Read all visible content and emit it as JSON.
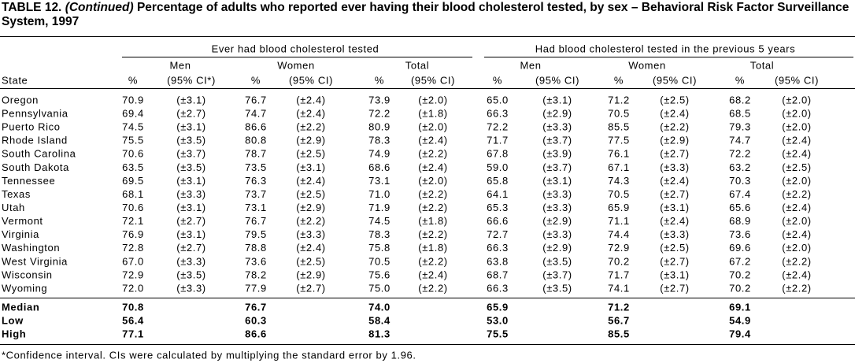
{
  "title": {
    "label": "TABLE 12.",
    "continued": "(Continued)",
    "text": "Percentage of adults who reported ever having their blood cholesterol tested, by sex – Behavioral Risk Factor Surveillance System, 1997"
  },
  "table": {
    "groups": [
      "Ever had blood cholesterol tested",
      "Had blood cholesterol tested in the previous 5 years"
    ],
    "subgroups": [
      "Men",
      "Women",
      "Total",
      "Men",
      "Women",
      "Total"
    ],
    "columns": [
      "State",
      "%",
      "(95% CI*)",
      "%",
      "(95% CI)",
      "%",
      "(95% CI)",
      "%",
      "(95% CI)",
      "%",
      "(95% CI)",
      "%",
      "(95% CI)"
    ],
    "rows": [
      [
        "Oregon",
        "70.9",
        "(±3.1)",
        "76.7",
        "(±2.4)",
        "73.9",
        "(±2.0)",
        "65.0",
        "(±3.1)",
        "71.2",
        "(±2.5)",
        "68.2",
        "(±2.0)"
      ],
      [
        "Pennsylvania",
        "69.4",
        "(±2.7)",
        "74.7",
        "(±2.4)",
        "72.2",
        "(±1.8)",
        "66.3",
        "(±2.9)",
        "70.5",
        "(±2.4)",
        "68.5",
        "(±2.0)"
      ],
      [
        "Puerto Rico",
        "74.5",
        "(±3.1)",
        "86.6",
        "(±2.2)",
        "80.9",
        "(±2.0)",
        "72.2",
        "(±3.3)",
        "85.5",
        "(±2.2)",
        "79.3",
        "(±2.0)"
      ],
      [
        "Rhode Island",
        "75.5",
        "(±3.5)",
        "80.8",
        "(±2.9)",
        "78.3",
        "(±2.4)",
        "71.7",
        "(±3.7)",
        "77.5",
        "(±2.9)",
        "74.7",
        "(±2.4)"
      ],
      [
        "South Carolina",
        "70.6",
        "(±3.7)",
        "78.7",
        "(±2.5)",
        "74.9",
        "(±2.2)",
        "67.8",
        "(±3.9)",
        "76.1",
        "(±2.7)",
        "72.2",
        "(±2.4)"
      ],
      [
        "South Dakota",
        "63.5",
        "(±3.5)",
        "73.5",
        "(±3.1)",
        "68.6",
        "(±2.4)",
        "59.0",
        "(±3.7)",
        "67.1",
        "(±3.3)",
        "63.2",
        "(±2.5)"
      ],
      [
        "Tennessee",
        "69.5",
        "(±3.1)",
        "76.3",
        "(±2.4)",
        "73.1",
        "(±2.0)",
        "65.8",
        "(±3.1)",
        "74.3",
        "(±2.4)",
        "70.3",
        "(±2.0)"
      ],
      [
        "Texas",
        "68.1",
        "(±3.3)",
        "73.7",
        "(±2.5)",
        "71.0",
        "(±2.2)",
        "64.1",
        "(±3.3)",
        "70.5",
        "(±2.7)",
        "67.4",
        "(±2.2)"
      ],
      [
        "Utah",
        "70.6",
        "(±3.1)",
        "73.1",
        "(±2.9)",
        "71.9",
        "(±2.2)",
        "65.3",
        "(±3.3)",
        "65.9",
        "(±3.1)",
        "65.6",
        "(±2.4)"
      ],
      [
        "Vermont",
        "72.1",
        "(±2.7)",
        "76.7",
        "(±2.2)",
        "74.5",
        "(±1.8)",
        "66.6",
        "(±2.9)",
        "71.1",
        "(±2.4)",
        "68.9",
        "(±2.0)"
      ],
      [
        "Virginia",
        "76.9",
        "(±3.1)",
        "79.5",
        "(±3.3)",
        "78.3",
        "(±2.2)",
        "72.7",
        "(±3.3)",
        "74.4",
        "(±3.3)",
        "73.6",
        "(±2.4)"
      ],
      [
        "Washington",
        "72.8",
        "(±2.7)",
        "78.8",
        "(±2.4)",
        "75.8",
        "(±1.8)",
        "66.3",
        "(±2.9)",
        "72.9",
        "(±2.5)",
        "69.6",
        "(±2.0)"
      ],
      [
        "West Virginia",
        "67.0",
        "(±3.3)",
        "73.6",
        "(±2.5)",
        "70.5",
        "(±2.2)",
        "63.8",
        "(±3.5)",
        "70.2",
        "(±2.7)",
        "67.2",
        "(±2.2)"
      ],
      [
        "Wisconsin",
        "72.9",
        "(±3.5)",
        "78.2",
        "(±2.9)",
        "75.6",
        "(±2.4)",
        "68.7",
        "(±3.7)",
        "71.7",
        "(±3.1)",
        "70.2",
        "(±2.4)"
      ],
      [
        "Wyoming",
        "72.0",
        "(±3.3)",
        "77.9",
        "(±2.7)",
        "75.0",
        "(±2.2)",
        "66.3",
        "(±3.5)",
        "74.1",
        "(±2.7)",
        "70.2",
        "(±2.2)"
      ]
    ],
    "summary": [
      [
        "Median",
        "70.8",
        "76.7",
        "74.0",
        "65.9",
        "71.2",
        "69.1"
      ],
      [
        "Low",
        "56.4",
        "60.3",
        "58.4",
        "53.0",
        "56.7",
        "54.9"
      ],
      [
        "High",
        "77.1",
        "86.6",
        "81.3",
        "75.5",
        "85.5",
        "79.4"
      ]
    ]
  },
  "footnote": "*Confidence interval. CIs were calculated by multiplying the standard error by 1.96."
}
